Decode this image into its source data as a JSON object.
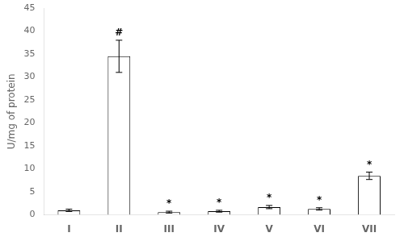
{
  "chart_data": {
    "type": "bar",
    "categories": [
      "I",
      "II",
      "III",
      "IV",
      "V",
      "VI",
      "VII"
    ],
    "values": [
      1.0,
      34.5,
      0.6,
      0.8,
      1.7,
      1.3,
      8.5
    ],
    "errors": [
      0.25,
      3.5,
      0.2,
      0.2,
      0.35,
      0.25,
      0.8
    ],
    "annotations": [
      null,
      "#",
      "*",
      "*",
      "*",
      "*",
      "*"
    ],
    "ylabel": "U/mg of protein",
    "color": "#ffffff",
    "ylim": [
      0,
      45
    ],
    "yticks": [
      0,
      5,
      10,
      15,
      20,
      25,
      30,
      35,
      40,
      45
    ],
    "grid": false
  }
}
